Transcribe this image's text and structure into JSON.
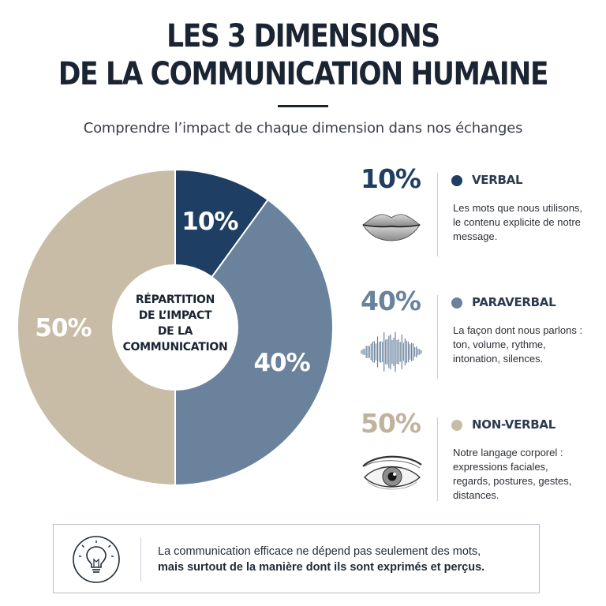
{
  "header": {
    "title_line1": "LES 3 DIMENSIONS",
    "title_line2": "DE LA COMMUNICATION HUMAINE",
    "subtitle": "Comprendre l’impact de chaque dimension dans nos échanges"
  },
  "chart_data": {
    "type": "pie",
    "style": "donut",
    "center_label": [
      "RÉPARTITION",
      "DE L’IMPACT",
      "DE LA",
      "COMMUNICATION"
    ],
    "categories": [
      "VERBAL",
      "PARAVERBAL",
      "NON-VERBAL"
    ],
    "values": [
      10,
      40,
      50
    ],
    "value_labels": [
      "10%",
      "40%",
      "50%"
    ],
    "colors": [
      "#1e3e63",
      "#6a829c",
      "#c8bca6"
    ],
    "label_colors": [
      "#1e3e63",
      "#6a829c",
      "#bfb39d"
    ]
  },
  "legend_rows": [
    {
      "pct": "10%",
      "label": "VERBAL",
      "icon": "lips-icon",
      "desc": "Les mots que nous utilisons, le contenu explicite de notre message."
    },
    {
      "pct": "40%",
      "label": "PARAVERBAL",
      "icon": "sound-wave-icon",
      "desc": "La façon dont nous parlons : ton, volume, rythme, intonation, silences."
    },
    {
      "pct": "50%",
      "label": "NON-VERBAL",
      "icon": "eye-icon",
      "desc": "Notre langage corporel : expressions faciales, regards, postures, gestes, distances."
    }
  ],
  "footer": {
    "icon": "lightbulb-icon",
    "text_line1": "La communication efficace ne dépend pas seulement des mots,",
    "text_line2": "mais surtout de la manière dont ils sont exprimés et perçus."
  }
}
